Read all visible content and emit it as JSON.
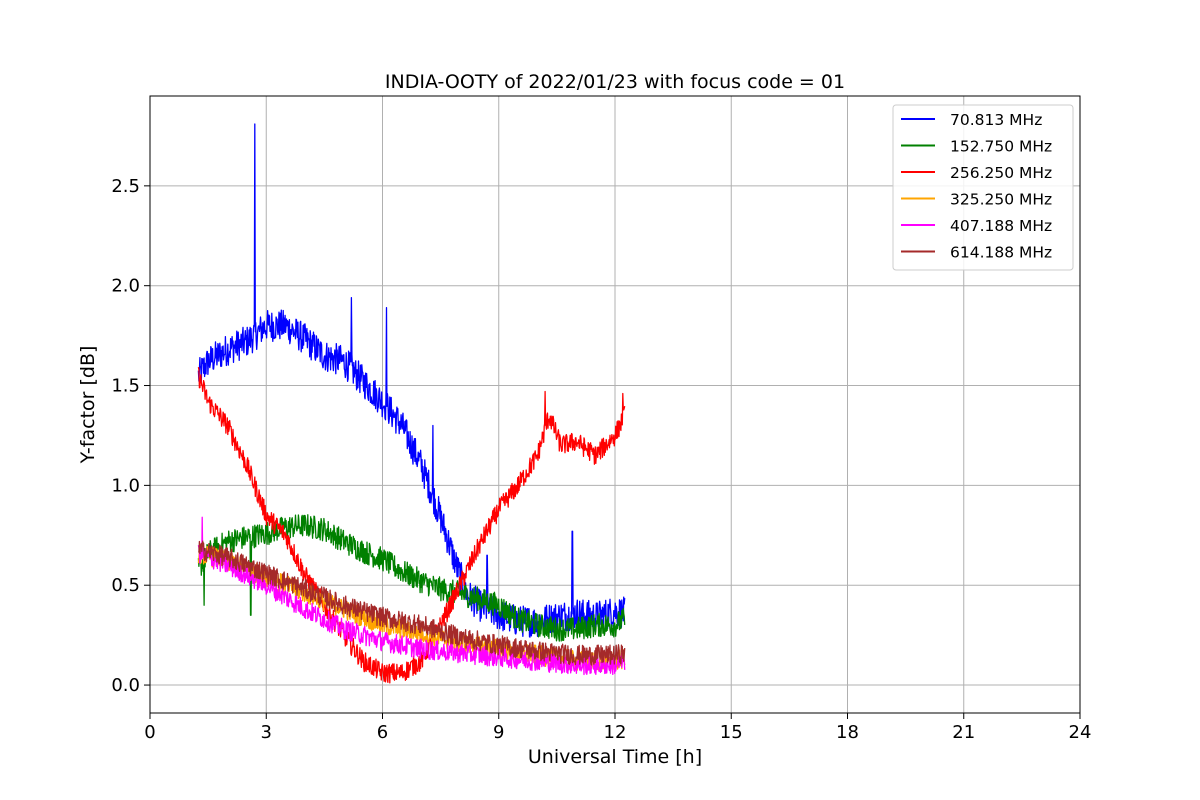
{
  "chart_data": {
    "type": "line",
    "title": "INDIA-OOTY of 2022/01/23 with focus code = 01",
    "xlabel": "Universal Time [h]",
    "ylabel": "Y-factor [dB]",
    "xlim": [
      0,
      24
    ],
    "ylim": [
      -0.14,
      2.95
    ],
    "xticks": [
      0,
      3,
      6,
      9,
      12,
      15,
      18,
      21,
      24
    ],
    "xtick_labels": [
      "0",
      "3",
      "6",
      "9",
      "12",
      "15",
      "18",
      "21",
      "24"
    ],
    "yticks": [
      0.0,
      0.5,
      1.0,
      1.5,
      2.0,
      2.5
    ],
    "ytick_labels": [
      "0.0",
      "0.5",
      "1.0",
      "1.5",
      "2.0",
      "2.5"
    ],
    "grid": true,
    "legend_position": "top-right",
    "series": [
      {
        "name": " 70.813 MHz",
        "color": "#0000ff",
        "noise": 0.08,
        "x": [
          1.25,
          1.5,
          2.0,
          2.5,
          3.0,
          3.5,
          4.0,
          4.5,
          5.0,
          5.5,
          6.0,
          6.5,
          7.0,
          7.3,
          7.6,
          7.9,
          8.2,
          8.5,
          9.0,
          9.5,
          10.0,
          10.5,
          11.0,
          11.5,
          12.0,
          12.25
        ],
        "y": [
          1.55,
          1.62,
          1.68,
          1.72,
          1.8,
          1.8,
          1.73,
          1.65,
          1.62,
          1.52,
          1.42,
          1.3,
          1.1,
          0.95,
          0.78,
          0.6,
          0.45,
          0.4,
          0.35,
          0.32,
          0.32,
          0.34,
          0.36,
          0.34,
          0.37,
          0.36
        ],
        "spikes": [
          [
            2.7,
            2.81
          ],
          [
            5.2,
            1.94
          ],
          [
            6.1,
            1.89
          ],
          [
            7.3,
            1.3
          ],
          [
            10.9,
            0.77
          ],
          [
            8.7,
            0.65
          ]
        ]
      },
      {
        "name": "152.750 MHz",
        "color": "#008000",
        "noise": 0.06,
        "x": [
          1.25,
          1.5,
          2.0,
          2.5,
          3.0,
          3.5,
          4.0,
          4.5,
          5.0,
          5.5,
          6.0,
          6.5,
          7.0,
          7.5,
          8.0,
          8.5,
          9.0,
          9.5,
          10.0,
          10.5,
          11.0,
          11.5,
          12.0,
          12.25
        ],
        "y": [
          0.58,
          0.66,
          0.72,
          0.74,
          0.76,
          0.79,
          0.8,
          0.78,
          0.72,
          0.67,
          0.63,
          0.57,
          0.52,
          0.48,
          0.46,
          0.43,
          0.4,
          0.33,
          0.3,
          0.28,
          0.28,
          0.3,
          0.3,
          0.33
        ],
        "spikes": [
          [
            1.4,
            0.4
          ],
          [
            2.6,
            0.35
          ]
        ]
      },
      {
        "name": "256.250 MHz",
        "color": "#ff0000",
        "noise": 0.05,
        "x": [
          1.25,
          1.5,
          2.0,
          2.5,
          3.0,
          3.5,
          4.0,
          4.5,
          5.0,
          5.5,
          6.0,
          6.5,
          7.0,
          7.5,
          8.0,
          8.5,
          9.0,
          9.5,
          10.0,
          10.3,
          10.6,
          11.0,
          11.5,
          12.0,
          12.25
        ],
        "y": [
          1.55,
          1.42,
          1.3,
          1.1,
          0.85,
          0.75,
          0.55,
          0.4,
          0.25,
          0.12,
          0.06,
          0.06,
          0.12,
          0.3,
          0.5,
          0.7,
          0.88,
          1.0,
          1.15,
          1.35,
          1.2,
          1.22,
          1.15,
          1.25,
          1.35
        ],
        "spikes": [
          [
            10.2,
            1.47
          ],
          [
            12.2,
            1.46
          ]
        ]
      },
      {
        "name": "325.250 MHz",
        "color": "#ffa500",
        "noise": 0.05,
        "x": [
          1.25,
          2.0,
          3.0,
          4.0,
          5.0,
          6.0,
          7.0,
          8.0,
          9.0,
          10.0,
          11.0,
          12.0,
          12.25
        ],
        "y": [
          0.66,
          0.62,
          0.54,
          0.46,
          0.38,
          0.3,
          0.26,
          0.21,
          0.18,
          0.15,
          0.12,
          0.12,
          0.13
        ],
        "spikes": []
      },
      {
        "name": "407.188 MHz",
        "color": "#ff00ff",
        "noise": 0.05,
        "x": [
          1.25,
          2.0,
          3.0,
          4.0,
          5.0,
          6.0,
          7.0,
          8.0,
          9.0,
          10.0,
          11.0,
          12.0,
          12.25
        ],
        "y": [
          0.66,
          0.6,
          0.5,
          0.38,
          0.28,
          0.22,
          0.18,
          0.16,
          0.14,
          0.12,
          0.1,
          0.1,
          0.12
        ],
        "spikes": [
          [
            1.35,
            0.84
          ]
        ]
      },
      {
        "name": "614.188 MHz",
        "color": "#a52a2a",
        "noise": 0.05,
        "x": [
          1.25,
          2.0,
          3.0,
          4.0,
          5.0,
          6.0,
          7.0,
          8.0,
          9.0,
          10.0,
          11.0,
          12.0,
          12.25
        ],
        "y": [
          0.68,
          0.64,
          0.56,
          0.48,
          0.4,
          0.34,
          0.3,
          0.24,
          0.2,
          0.17,
          0.15,
          0.15,
          0.16
        ],
        "spikes": []
      }
    ]
  }
}
